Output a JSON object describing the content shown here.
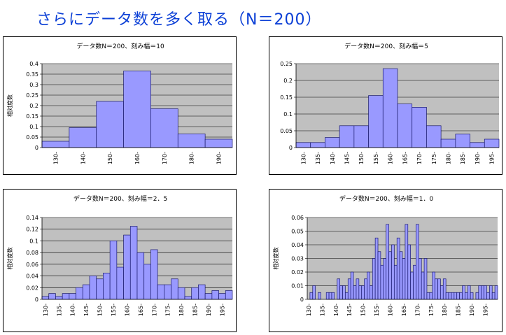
{
  "page": {
    "title": "さらにデータ数を多く取る（N＝200）"
  },
  "chart_data": [
    {
      "type": "bar",
      "title": "データ数N＝200、刻み幅＝10",
      "ylabel": "相対度数",
      "ylim": [
        0,
        0.4
      ],
      "yticks": [
        "0",
        "0.05",
        "0.1",
        "0.15",
        "0.2",
        "0.25",
        "0.3",
        "0.35",
        "0.4"
      ],
      "categories": [
        "130",
        "140",
        "150",
        "160",
        "170",
        "180",
        "190"
      ],
      "values": [
        0.03,
        0.095,
        0.22,
        0.365,
        0.185,
        0.065,
        0.04
      ],
      "bar_color": "#9999ff",
      "plot_bg": "#c0c0c0",
      "grid": true
    },
    {
      "type": "bar",
      "title": "データ数N＝200、刻み幅＝5",
      "ylabel": "",
      "ylim": [
        0,
        0.25
      ],
      "yticks": [
        "0",
        "0.05",
        "0.1",
        "0.15",
        "0.2",
        "0.25"
      ],
      "categories": [
        "130",
        "135",
        "140",
        "145",
        "150",
        "155",
        "160",
        "165",
        "170",
        "175",
        "180",
        "185",
        "190",
        "195"
      ],
      "values": [
        0.015,
        0.015,
        0.03,
        0.065,
        0.065,
        0.155,
        0.235,
        0.13,
        0.12,
        0.065,
        0.025,
        0.04,
        0.015,
        0.025
      ],
      "bar_color": "#9999ff",
      "plot_bg": "#c0c0c0",
      "grid": true
    },
    {
      "type": "bar",
      "title": "データ数N＝200、刻み幅＝2．5",
      "ylabel": "相対度数",
      "ylim": [
        0,
        0.14
      ],
      "yticks": [
        "0",
        "0.02",
        "0.04",
        "0.06",
        "0.08",
        "0.1",
        "0.12",
        "0.14"
      ],
      "categories": [
        "130",
        "",
        "135",
        "",
        "140",
        "",
        "145",
        "",
        "150",
        "",
        "155",
        "",
        "160",
        "",
        "165",
        "",
        "170",
        "",
        "175",
        "",
        "180",
        "",
        "185",
        "",
        "190",
        "",
        "195",
        ""
      ],
      "values": [
        0.005,
        0.01,
        0.005,
        0.01,
        0.01,
        0.02,
        0.025,
        0.04,
        0.035,
        0.045,
        0.1,
        0.055,
        0.11,
        0.125,
        0.08,
        0.06,
        0.085,
        0.025,
        0.025,
        0.035,
        0.02,
        0.005,
        0.02,
        0.025,
        0.01,
        0.015,
        0.01,
        0.015
      ],
      "bar_color": "#9999ff",
      "plot_bg": "#c0c0c0",
      "grid": true
    },
    {
      "type": "bar",
      "title": "データ数N＝200、刻み幅＝1．0",
      "ylabel": "相対度数",
      "ylim": [
        0,
        0.06
      ],
      "yticks": [
        "0",
        "0.01",
        "0.02",
        "0.03",
        "0.04",
        "0.05",
        "0.06"
      ],
      "categories": [
        "130",
        "",
        "",
        "",
        "",
        "135",
        "",
        "",
        "",
        "",
        "140",
        "",
        "",
        "",
        "",
        "145",
        "",
        "",
        "",
        "",
        "150",
        "",
        "",
        "",
        "",
        "155",
        "",
        "",
        "",
        "",
        "160",
        "",
        "",
        "",
        "",
        "165",
        "",
        "",
        "",
        "",
        "170",
        "",
        "",
        "",
        "",
        "175",
        "",
        "",
        "",
        "",
        "180",
        "",
        "",
        "",
        "",
        "185",
        "",
        "",
        "",
        "",
        "190",
        "",
        "",
        "",
        "",
        "195",
        "",
        "",
        "",
        ""
      ],
      "values": [
        0,
        0.005,
        0.01,
        0,
        0.005,
        0,
        0,
        0.005,
        0.005,
        0.005,
        0,
        0.015,
        0.01,
        0.01,
        0.005,
        0.015,
        0.02,
        0.01,
        0.015,
        0.01,
        0.01,
        0.015,
        0.02,
        0.01,
        0.03,
        0.045,
        0.035,
        0.025,
        0.03,
        0.055,
        0.035,
        0.04,
        0.025,
        0.045,
        0.035,
        0.03,
        0.055,
        0.04,
        0.02,
        0.025,
        0.055,
        0.03,
        0.02,
        0.03,
        0.005,
        0.005,
        0.02,
        0.015,
        0.015,
        0.01,
        0.015,
        0.005,
        0.005,
        0.005,
        0.005,
        0.005,
        0.005,
        0.01,
        0.005,
        0.01,
        0.005,
        0,
        0.005,
        0.01,
        0.01,
        0.01,
        0.005,
        0.01,
        0.005,
        0.01
      ],
      "bar_color": "#9999ff",
      "plot_bg": "#c0c0c0",
      "grid": true
    }
  ]
}
